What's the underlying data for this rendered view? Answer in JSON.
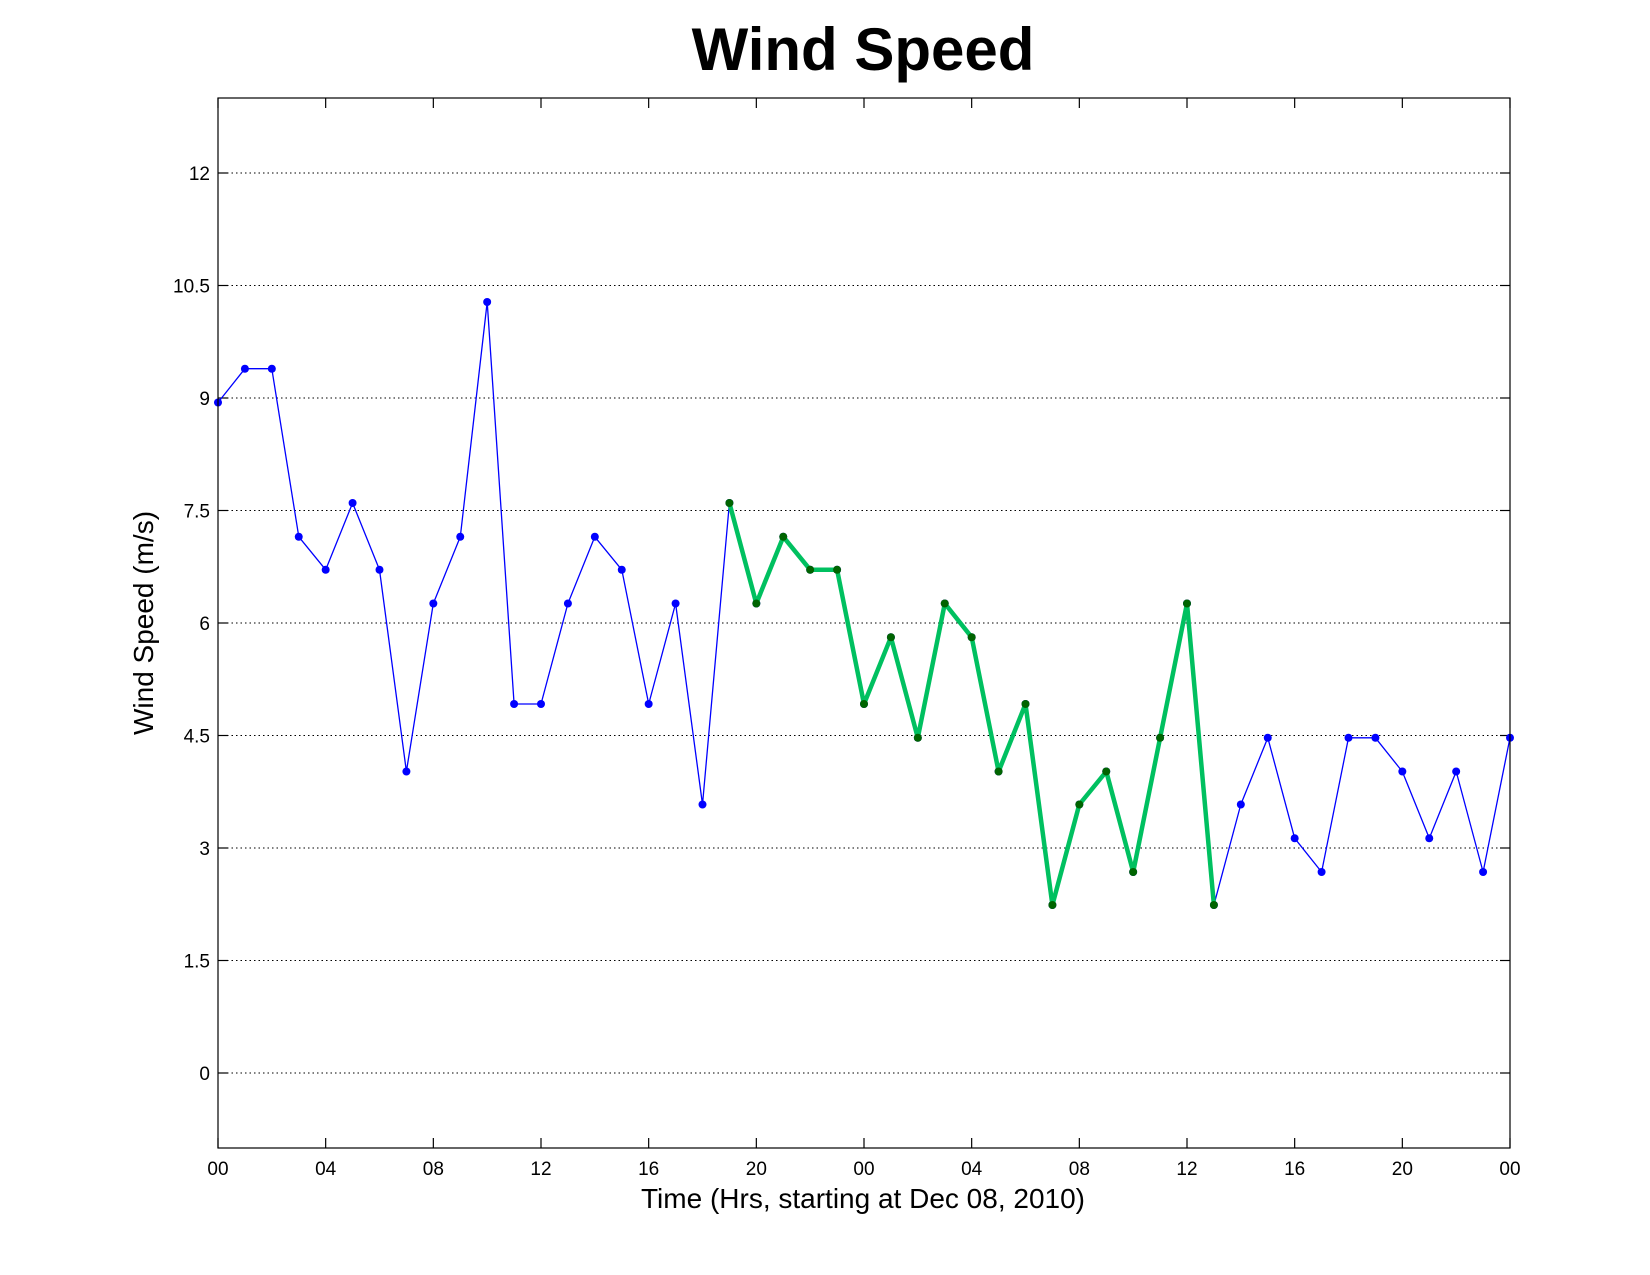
{
  "chart_data": {
    "type": "line",
    "title": "Wind Speed",
    "xlabel": "Time (Hrs, starting at Dec 08, 2010)",
    "ylabel": "Wind Speed (m/s)",
    "ylim": [
      -1,
      13
    ],
    "y_ticks": [
      0,
      1.5,
      3,
      4.5,
      6,
      7.5,
      9,
      10.5,
      12
    ],
    "y_tick_labels": [
      "0",
      "1.5",
      "3",
      "4.5",
      "6",
      "7.5",
      "9",
      "10.5",
      "12"
    ],
    "xlim": [
      0,
      48
    ],
    "x_ticks": [
      0,
      4,
      8,
      12,
      16,
      20,
      24,
      28,
      32,
      36,
      40,
      44,
      48
    ],
    "x_tick_labels": [
      "00",
      "04",
      "08",
      "12",
      "16",
      "20",
      "00",
      "04",
      "08",
      "12",
      "16",
      "20",
      "00"
    ],
    "grid": "horizontal dotted",
    "series": [
      {
        "color": "#0000ff",
        "marker_color": "#0000ff",
        "line_width": "thin",
        "x": [
          0,
          1,
          2,
          3,
          4,
          5,
          6,
          7,
          8,
          9,
          10,
          11,
          12,
          13,
          14,
          15,
          16,
          17,
          18,
          19,
          20,
          21,
          22,
          23,
          24,
          25,
          26,
          27,
          28,
          29,
          30,
          31,
          32,
          33,
          34,
          35,
          36,
          37,
          38,
          39,
          40,
          41,
          42,
          43,
          44,
          45,
          46,
          47,
          48
        ],
        "values": [
          8.94,
          9.39,
          9.39,
          7.15,
          6.71,
          7.6,
          6.71,
          4.02,
          6.26,
          7.15,
          10.28,
          4.92,
          4.92,
          6.26,
          7.15,
          6.71,
          4.92,
          6.26,
          3.58,
          7.6,
          6.26,
          7.15,
          6.71,
          6.71,
          4.92,
          5.81,
          4.47,
          6.26,
          5.81,
          4.02,
          4.92,
          2.24,
          3.58,
          4.02,
          2.68,
          4.47,
          6.26,
          2.24,
          3.58,
          4.47,
          3.13,
          2.68,
          4.47,
          4.47,
          4.02,
          3.13,
          4.02,
          2.68,
          4.47
        ]
      },
      {
        "color": "#00c060",
        "marker_color": "#006400",
        "line_width": "thick",
        "x": [
          19,
          20,
          21,
          22,
          23,
          24,
          25,
          26,
          27,
          28,
          29,
          30,
          31,
          32,
          33,
          34,
          35,
          36,
          37
        ],
        "values": [
          7.6,
          6.26,
          7.15,
          6.71,
          6.71,
          4.92,
          5.81,
          4.47,
          6.26,
          5.81,
          4.02,
          4.92,
          2.24,
          3.58,
          4.02,
          2.68,
          4.47,
          6.26,
          2.24
        ]
      }
    ]
  }
}
